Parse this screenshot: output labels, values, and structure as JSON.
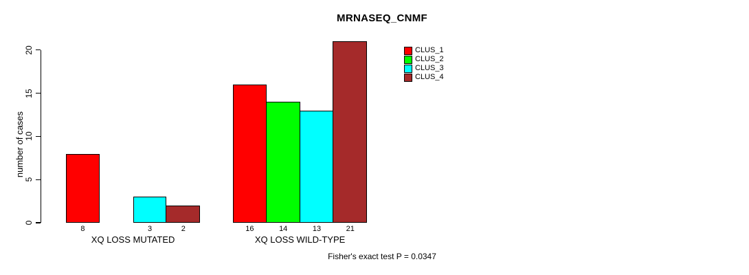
{
  "page": {
    "background": "#FFFFFF",
    "text_color": "#000000"
  },
  "chart_data": {
    "type": "bar",
    "title": "MRNASEQ_CNMF",
    "xlabel": "",
    "ylabel": "number of cases",
    "ylim": [
      0,
      20
    ],
    "yticks": [
      "0",
      "5",
      "10",
      "15",
      "20"
    ],
    "categories": [
      "XQ LOSS MUTATED",
      "XQ LOSS WILD-TYPE"
    ],
    "series": [
      {
        "name": "CLUS_1",
        "color": "#FF0000",
        "values": [
          8,
          16
        ]
      },
      {
        "name": "CLUS_2",
        "color": "#00FF00",
        "values": [
          0,
          14
        ]
      },
      {
        "name": "CLUS_3",
        "color": "#00FFFF",
        "values": [
          3,
          13
        ]
      },
      {
        "name": "CLUS_4",
        "color": "#A52A2A",
        "values": [
          2,
          21
        ]
      }
    ],
    "bar_value_labels_shown": true,
    "zero_value_bars_hidden": true,
    "legend_position": "top-right",
    "grid": false,
    "bar_border_color": "#000000",
    "axis_color": "#000000",
    "annotation": "Fisher's exact test P = 0.0347"
  }
}
